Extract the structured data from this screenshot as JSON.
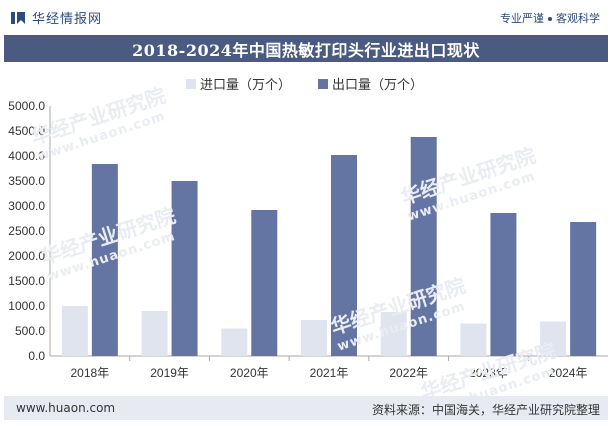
{
  "header": {
    "brand_name": "华经情报网",
    "tagline_left": "专业严谨",
    "tagline_right": "客观科学"
  },
  "watermark": {
    "text": "华经产业研究院",
    "url": "www.huaon.com"
  },
  "footer": {
    "website": "www.huaon.com",
    "source": "资料来源：中国海关，华经产业研究院整理"
  },
  "colors": {
    "import": "#dfe4ee",
    "export": "#6474a3",
    "title_bg": "#4a5a80",
    "brand": "#2b4c7e"
  },
  "chart_data": {
    "type": "bar",
    "title": "2018-2024年中国热敏打印头行业进出口现状",
    "categories": [
      "2018年",
      "2019年",
      "2020年",
      "2021年",
      "2022年",
      "2023年",
      "2024年"
    ],
    "series": [
      {
        "name": "进口量（万个）",
        "values": [
          1000,
          900,
          550,
          720,
          880,
          650,
          690
        ]
      },
      {
        "name": "出口量（万个）",
        "values": [
          3840,
          3500,
          2920,
          4020,
          4380,
          2860,
          2680
        ]
      }
    ],
    "ylim": [
      0,
      5000
    ],
    "yticks": [
      "0.0",
      "500.0",
      "1000.0",
      "1500.0",
      "2000.0",
      "2500.0",
      "3000.0",
      "3500.0",
      "4000.0",
      "4500.0",
      "5000.0"
    ],
    "grid": false,
    "legend_position": "top"
  }
}
